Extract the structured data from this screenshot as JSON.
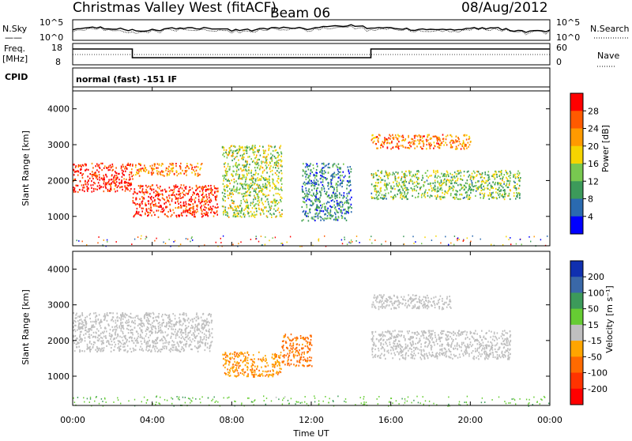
{
  "header": {
    "station": "Christmas Valley West (fitACF)",
    "beam": "Beam 06",
    "date": "08/Aug/2012"
  },
  "sky_panel": {
    "left_label": "N.Sky",
    "left_ticks": [
      "10^5",
      "10^0"
    ],
    "right_ticks": [
      "10^5",
      "10^0"
    ],
    "right_label": "N.Search"
  },
  "freq_panel": {
    "left_label_1": "Freq.",
    "left_label_2": "[MHz]",
    "left_ticks": [
      "18",
      "8"
    ],
    "right_ticks": [
      "60",
      "0"
    ],
    "right_label": "Nave"
  },
  "cpid_panel": {
    "left_label": "CPID",
    "mode_text": "normal (fast) -151 IF"
  },
  "power_panel": {
    "ylabel": "Slant Range [km]",
    "yticks": [
      "4000",
      "3000",
      "2000",
      "1000"
    ],
    "colorbar_label": "Power [dB]",
    "colorbar_ticks": [
      "28",
      "24",
      "20",
      "16",
      "12",
      "8",
      "4"
    ],
    "colorbar_colors": [
      "#ff0000",
      "#ff5a00",
      "#ff9a00",
      "#f5d400",
      "#78c850",
      "#3c9a5a",
      "#2a6ab0",
      "#0000ff"
    ]
  },
  "velocity_panel": {
    "ylabel": "Slant Range [km]",
    "yticks": [
      "4000",
      "3000",
      "2000",
      "1000"
    ],
    "colorbar_label": "Velocity [m s⁻¹]",
    "colorbar_ticks": [
      "200",
      "100",
      "50",
      "15",
      "-15",
      "-50",
      "-100",
      "-200"
    ],
    "colorbar_colors": [
      "#1030b0",
      "#3a68a8",
      "#3c9a5a",
      "#66cc33",
      "#bfbfbf",
      "#ffa500",
      "#ff6a00",
      "#ff3300",
      "#ff0000"
    ]
  },
  "x_axis": {
    "ticks": [
      "00:00",
      "04:00",
      "08:00",
      "12:00",
      "16:00",
      "20:00",
      "00:00"
    ],
    "label": "Time UT"
  },
  "chart_data": {
    "type": "heatmap",
    "x_unit": "hours UT",
    "x_range": [
      0,
      24
    ],
    "y_range_km": [
      180,
      4500
    ],
    "power_range_db": [
      0,
      30
    ],
    "velocity_range": [
      -200,
      200
    ],
    "power_echo_bands": [
      {
        "t": [
          0,
          3
        ],
        "r": [
          1700,
          2500
        ],
        "power": 28
      },
      {
        "t": [
          3,
          7.3
        ],
        "r": [
          1000,
          1900
        ],
        "power": 27
      },
      {
        "t": [
          3,
          6.5
        ],
        "r": [
          2150,
          2500
        ],
        "power": 22
      },
      {
        "t": [
          7.5,
          10.5
        ],
        "r": [
          1000,
          3000
        ],
        "power": 14
      },
      {
        "t": [
          11.5,
          14
        ],
        "r": [
          900,
          2500
        ],
        "power": 8
      },
      {
        "t": [
          15,
          22.5
        ],
        "r": [
          1500,
          2300
        ],
        "power": 13
      },
      {
        "t": [
          15,
          20
        ],
        "r": [
          2900,
          3300
        ],
        "power": 22
      }
    ],
    "velocity_echo_bands": [
      {
        "t": [
          0,
          7
        ],
        "r": [
          1700,
          2800
        ],
        "velocity": 0
      },
      {
        "t": [
          7.5,
          10.5
        ],
        "r": [
          1000,
          1700
        ],
        "velocity": -60
      },
      {
        "t": [
          10.5,
          12
        ],
        "r": [
          1300,
          2200
        ],
        "velocity": -80
      },
      {
        "t": [
          15,
          22
        ],
        "r": [
          1500,
          2300
        ],
        "velocity": 0
      },
      {
        "t": [
          15,
          19
        ],
        "r": [
          2900,
          3300
        ],
        "velocity": 0
      }
    ]
  }
}
